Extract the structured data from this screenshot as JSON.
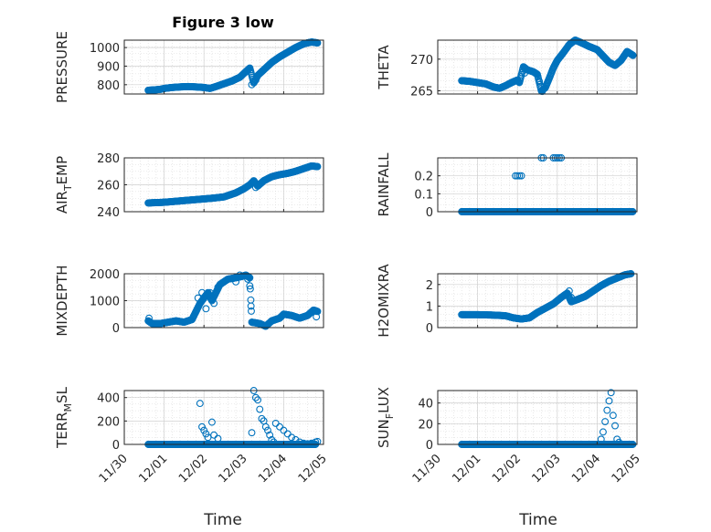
{
  "figure_title": "Figure 3 low",
  "x_axis_label": "Time",
  "x_tick_labels": [
    "11/30",
    "12/01",
    "12/02",
    "12/03",
    "12/04",
    "12/05"
  ],
  "marker_color": "#0072BD",
  "chart_data": [
    {
      "type": "scatter",
      "ylabel": "PRESSURE",
      "ylim": [
        750,
        1040
      ],
      "yticks": [
        800,
        900,
        1000
      ],
      "xlim": [
        0,
        5
      ],
      "grid": true,
      "anchors": [
        [
          0.6,
          770
        ],
        [
          0.75,
          772
        ],
        [
          0.9,
          775
        ],
        [
          1.0,
          780
        ],
        [
          1.2,
          785
        ],
        [
          1.4,
          788
        ],
        [
          1.6,
          790
        ],
        [
          1.8,
          788
        ],
        [
          2.0,
          785
        ],
        [
          2.15,
          780
        ],
        [
          2.3,
          790
        ],
        [
          2.5,
          805
        ],
        [
          2.7,
          820
        ],
        [
          2.9,
          840
        ],
        [
          3.05,
          870
        ],
        [
          3.15,
          890
        ],
        [
          3.25,
          810
        ],
        [
          3.35,
          850
        ],
        [
          3.5,
          880
        ],
        [
          3.7,
          920
        ],
        [
          3.9,
          950
        ],
        [
          4.1,
          975
        ],
        [
          4.3,
          1000
        ],
        [
          4.5,
          1020
        ],
        [
          4.7,
          1030
        ],
        [
          4.85,
          1025
        ]
      ],
      "outliers": [
        [
          3.2,
          800
        ],
        [
          3.3,
          825
        ]
      ]
    },
    {
      "type": "scatter",
      "ylabel": "THETA",
      "ylim": [
        264.5,
        273
      ],
      "yticks": [
        265,
        270
      ],
      "xlim": [
        0,
        5
      ],
      "grid": true,
      "anchors": [
        [
          0.6,
          266.6
        ],
        [
          0.8,
          266.5
        ],
        [
          1.0,
          266.3
        ],
        [
          1.2,
          266.1
        ],
        [
          1.4,
          265.6
        ],
        [
          1.55,
          265.4
        ],
        [
          1.7,
          265.8
        ],
        [
          1.85,
          266.3
        ],
        [
          2.0,
          266.7
        ],
        [
          2.05,
          266.3
        ],
        [
          2.15,
          268.8
        ],
        [
          2.25,
          268.3
        ],
        [
          2.4,
          268.0
        ],
        [
          2.5,
          267.6
        ],
        [
          2.6,
          265.0
        ],
        [
          2.7,
          265.5
        ],
        [
          2.8,
          267.0
        ],
        [
          2.9,
          268.6
        ],
        [
          3.0,
          269.8
        ],
        [
          3.15,
          271.0
        ],
        [
          3.3,
          272.3
        ],
        [
          3.45,
          273.0
        ],
        [
          3.6,
          272.6
        ],
        [
          3.8,
          272.0
        ],
        [
          4.0,
          271.5
        ],
        [
          4.15,
          270.5
        ],
        [
          4.3,
          269.5
        ],
        [
          4.45,
          269.0
        ],
        [
          4.6,
          269.8
        ],
        [
          4.75,
          271.2
        ],
        [
          4.9,
          270.6
        ]
      ],
      "outliers": [
        [
          2.18,
          267.8
        ],
        [
          2.55,
          266.5
        ],
        [
          2.62,
          264.9
        ]
      ]
    },
    {
      "type": "scatter",
      "ylabel": "AIR_TEMP",
      "ylim": [
        240,
        280
      ],
      "yticks": [
        240,
        260,
        280
      ],
      "xlim": [
        0,
        5
      ],
      "grid": true,
      "anchors": [
        [
          0.6,
          246.5
        ],
        [
          1.0,
          247
        ],
        [
          1.4,
          248
        ],
        [
          1.8,
          249
        ],
        [
          2.2,
          250
        ],
        [
          2.5,
          251
        ],
        [
          2.8,
          254
        ],
        [
          3.0,
          257
        ],
        [
          3.15,
          260
        ],
        [
          3.25,
          263
        ],
        [
          3.35,
          259
        ],
        [
          3.5,
          263
        ],
        [
          3.7,
          266
        ],
        [
          3.9,
          267.5
        ],
        [
          4.1,
          268.5
        ],
        [
          4.3,
          270
        ],
        [
          4.5,
          272
        ],
        [
          4.7,
          274
        ],
        [
          4.85,
          273.5
        ]
      ],
      "outliers": [
        [
          3.3,
          258
        ]
      ]
    },
    {
      "type": "scatter",
      "ylabel": "RAINFALL",
      "ylim": [
        0,
        0.3
      ],
      "yticks": [
        0,
        0.1,
        0.2
      ],
      "xlim": [
        0,
        5
      ],
      "grid": true,
      "anchors": [],
      "outliers": [],
      "segments": [
        [
          0.6,
          4.9,
          0
        ]
      ],
      "extra_points": [
        [
          1.95,
          0.2
        ],
        [
          2.0,
          0.2
        ],
        [
          2.05,
          0.2
        ],
        [
          2.1,
          0.2
        ],
        [
          2.6,
          0.3
        ],
        [
          2.65,
          0.3
        ],
        [
          2.9,
          0.3
        ],
        [
          2.95,
          0.3
        ],
        [
          3.0,
          0.3
        ],
        [
          3.05,
          0.3
        ],
        [
          3.1,
          0.3
        ]
      ]
    },
    {
      "type": "scatter",
      "ylabel": "MIXDEPTH",
      "ylim": [
        0,
        2000
      ],
      "yticks": [
        0,
        1000,
        2000
      ],
      "xlim": [
        0,
        5
      ],
      "grid": true,
      "anchors": [
        [
          0.6,
          250
        ],
        [
          0.7,
          150
        ],
        [
          0.9,
          150
        ],
        [
          1.1,
          200
        ],
        [
          1.3,
          250
        ],
        [
          1.5,
          200
        ],
        [
          1.7,
          300
        ],
        [
          1.8,
          600
        ],
        [
          1.9,
          900
        ],
        [
          2.0,
          1100
        ],
        [
          2.1,
          1300
        ],
        [
          2.2,
          1000
        ],
        [
          2.3,
          1300
        ],
        [
          2.4,
          1600
        ],
        [
          2.6,
          1800
        ],
        [
          2.8,
          1850
        ],
        [
          2.95,
          1900
        ],
        [
          3.05,
          1950
        ],
        [
          3.15,
          1850
        ],
        [
          3.2,
          200
        ],
        [
          3.4,
          150
        ],
        [
          3.55,
          50
        ],
        [
          3.7,
          250
        ],
        [
          3.9,
          350
        ],
        [
          4.0,
          500
        ],
        [
          4.2,
          450
        ],
        [
          4.4,
          350
        ],
        [
          4.6,
          450
        ],
        [
          4.75,
          650
        ],
        [
          4.85,
          600
        ]
      ],
      "outliers": [
        [
          0.62,
          350
        ],
        [
          1.85,
          1100
        ],
        [
          1.95,
          1300
        ],
        [
          2.05,
          700
        ],
        [
          2.15,
          1300
        ],
        [
          2.25,
          900
        ],
        [
          2.35,
          1500
        ],
        [
          2.8,
          1700
        ],
        [
          2.9,
          1950
        ],
        [
          3.1,
          1800
        ],
        [
          3.15,
          1550
        ],
        [
          3.18,
          800
        ],
        [
          4.82,
          400
        ]
      ]
    },
    {
      "type": "scatter",
      "ylabel": "H2OMIXRA",
      "ylim": [
        0,
        2.5
      ],
      "yticks": [
        0,
        1,
        2
      ],
      "xlim": [
        0,
        5
      ],
      "grid": true,
      "anchors": [
        [
          0.6,
          0.6
        ],
        [
          1.0,
          0.6
        ],
        [
          1.4,
          0.58
        ],
        [
          1.7,
          0.55
        ],
        [
          1.9,
          0.45
        ],
        [
          2.1,
          0.4
        ],
        [
          2.3,
          0.45
        ],
        [
          2.5,
          0.7
        ],
        [
          2.7,
          0.9
        ],
        [
          2.9,
          1.1
        ],
        [
          3.1,
          1.4
        ],
        [
          3.25,
          1.6
        ],
        [
          3.35,
          1.2
        ],
        [
          3.5,
          1.3
        ],
        [
          3.7,
          1.45
        ],
        [
          3.9,
          1.7
        ],
        [
          4.1,
          1.95
        ],
        [
          4.3,
          2.15
        ],
        [
          4.5,
          2.3
        ],
        [
          4.7,
          2.45
        ],
        [
          4.85,
          2.5
        ]
      ],
      "outliers": [
        [
          3.3,
          1.7
        ],
        [
          3.35,
          1.4
        ]
      ]
    },
    {
      "type": "scatter",
      "ylabel": "TERR_MSL",
      "ylim": [
        0,
        460
      ],
      "yticks": [
        0,
        200,
        400
      ],
      "xlim": [
        0,
        5
      ],
      "grid": true,
      "anchors": [],
      "outliers": [],
      "segments": [
        [
          0.6,
          4.8,
          0
        ]
      ],
      "extra_points": [
        [
          1.9,
          350
        ],
        [
          1.95,
          150
        ],
        [
          2.0,
          120
        ],
        [
          2.05,
          90
        ],
        [
          2.1,
          60
        ],
        [
          2.2,
          190
        ],
        [
          2.25,
          80
        ],
        [
          2.35,
          50
        ],
        [
          3.2,
          100
        ],
        [
          3.25,
          460
        ],
        [
          3.3,
          400
        ],
        [
          3.35,
          380
        ],
        [
          3.4,
          300
        ],
        [
          3.45,
          220
        ],
        [
          3.5,
          200
        ],
        [
          3.55,
          150
        ],
        [
          3.6,
          120
        ],
        [
          3.65,
          80
        ],
        [
          3.7,
          40
        ],
        [
          3.75,
          20
        ],
        [
          3.8,
          180
        ],
        [
          3.9,
          150
        ],
        [
          4.0,
          120
        ],
        [
          4.1,
          90
        ],
        [
          4.2,
          60
        ],
        [
          4.3,
          40
        ],
        [
          4.4,
          20
        ],
        [
          4.5,
          10
        ],
        [
          4.6,
          5
        ],
        [
          4.7,
          10
        ],
        [
          4.8,
          20
        ],
        [
          4.85,
          25
        ]
      ]
    },
    {
      "type": "scatter",
      "ylabel": "SUN_FLUX",
      "ylim": [
        0,
        52
      ],
      "yticks": [
        0,
        20,
        40
      ],
      "xlim": [
        0,
        5
      ],
      "grid": true,
      "anchors": [],
      "outliers": [],
      "segments": [
        [
          0.6,
          4.9,
          0
        ]
      ],
      "extra_points": [
        [
          4.1,
          5
        ],
        [
          4.15,
          12
        ],
        [
          4.2,
          22
        ],
        [
          4.25,
          33
        ],
        [
          4.3,
          42
        ],
        [
          4.35,
          50
        ],
        [
          4.4,
          28
        ],
        [
          4.45,
          18
        ],
        [
          4.5,
          5
        ],
        [
          4.55,
          2
        ]
      ]
    }
  ]
}
